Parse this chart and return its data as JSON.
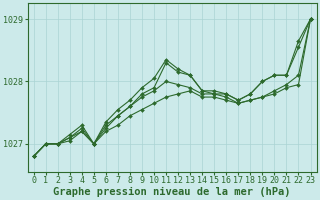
{
  "xlabel": "Graphe pression niveau de la mer (hPa)",
  "x": [
    0,
    1,
    2,
    3,
    4,
    5,
    6,
    7,
    8,
    9,
    10,
    11,
    12,
    13,
    14,
    15,
    16,
    17,
    18,
    19,
    20,
    21,
    22,
    23
  ],
  "series": [
    [
      1026.8,
      1027.0,
      1027.0,
      1027.1,
      1027.2,
      1027.0,
      1027.25,
      1027.45,
      1027.6,
      1027.8,
      1027.9,
      1028.3,
      1028.15,
      1028.1,
      1027.85,
      1027.8,
      1027.8,
      1027.7,
      1027.8,
      1028.0,
      1028.1,
      1028.1,
      1028.65,
      1029.0
    ],
    [
      1026.8,
      1027.0,
      1027.0,
      1027.1,
      1027.25,
      1027.0,
      1027.35,
      1027.55,
      1027.7,
      1027.9,
      1028.05,
      1028.35,
      1028.2,
      1028.1,
      1027.85,
      1027.85,
      1027.8,
      1027.7,
      1027.8,
      1028.0,
      1028.1,
      1028.1,
      1028.55,
      1029.0
    ],
    [
      1026.8,
      1027.0,
      1027.0,
      1027.15,
      1027.3,
      1027.0,
      1027.3,
      1027.45,
      1027.6,
      1027.75,
      1027.85,
      1028.0,
      1027.95,
      1027.9,
      1027.8,
      1027.8,
      1027.75,
      1027.65,
      1027.7,
      1027.75,
      1027.85,
      1027.95,
      1028.1,
      1029.0
    ],
    [
      1026.8,
      1027.0,
      1027.0,
      1027.05,
      1027.2,
      1027.0,
      1027.2,
      1027.3,
      1027.45,
      1027.55,
      1027.65,
      1027.75,
      1027.8,
      1027.85,
      1027.75,
      1027.75,
      1027.7,
      1027.65,
      1027.7,
      1027.75,
      1027.8,
      1027.9,
      1027.95,
      1029.0
    ]
  ],
  "line_color": "#2d6a2d",
  "marker": "D",
  "marker_size": 2.0,
  "bg_color": "#cceaea",
  "grid_color": "#aad4d4",
  "ylim": [
    1026.55,
    1029.25
  ],
  "yticks": [
    1027,
    1028,
    1029
  ],
  "xticks": [
    0,
    1,
    2,
    3,
    4,
    5,
    6,
    7,
    8,
    9,
    10,
    11,
    12,
    13,
    14,
    15,
    16,
    17,
    18,
    19,
    20,
    21,
    22,
    23
  ],
  "xlabel_fontsize": 7.5,
  "tick_fontsize": 6.0,
  "line_width": 0.8,
  "figsize": [
    3.2,
    2.0
  ],
  "dpi": 100
}
